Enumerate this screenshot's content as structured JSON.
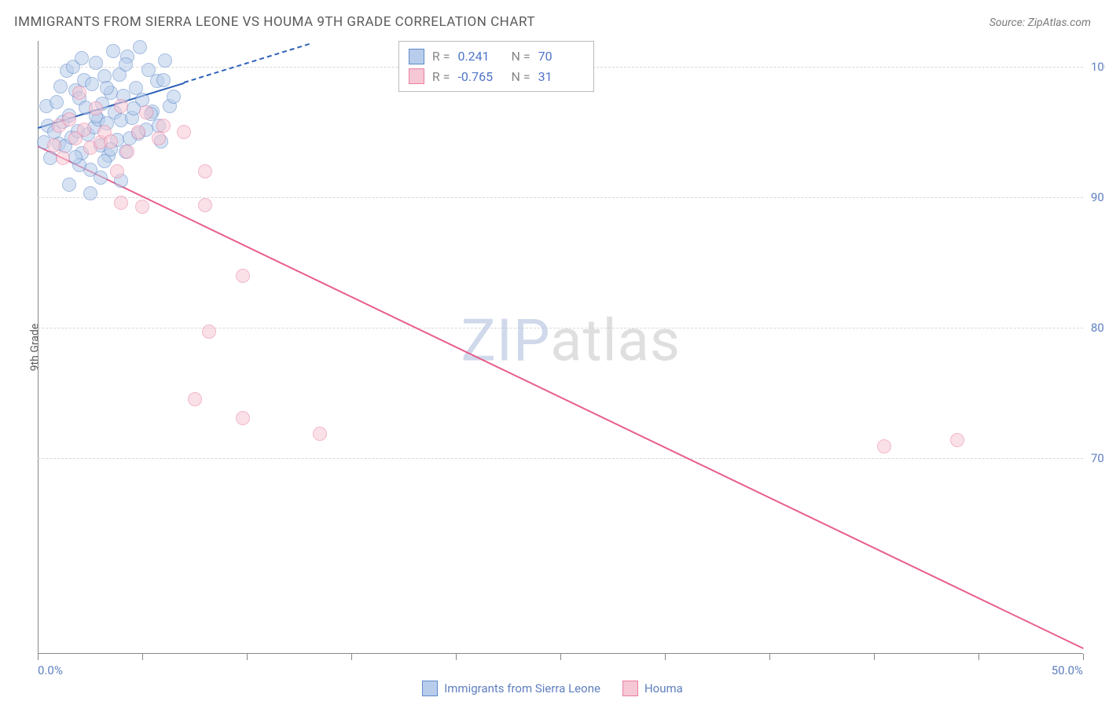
{
  "title": "IMMIGRANTS FROM SIERRA LEONE VS HOUMA 9TH GRADE CORRELATION CHART",
  "source": "Source: ZipAtlas.com",
  "y_axis_label": "9th Grade",
  "watermark": {
    "zip": "ZIP",
    "atlas": "atlas"
  },
  "footer_legend": [
    {
      "label": "Immigrants from Sierra Leone",
      "fill": "#b7cdeb",
      "stroke": "#5f88c9"
    },
    {
      "label": "Houma",
      "fill": "#f6c7d4",
      "stroke": "#e97fa2"
    }
  ],
  "stats_legend": {
    "left_pct": 34.5,
    "top_pct": 0,
    "rows": [
      {
        "swatch_fill": "#b7cdeb",
        "swatch_stroke": "#5f88c9",
        "r": "0.241",
        "n": "70"
      },
      {
        "swatch_fill": "#f6c7d4",
        "swatch_stroke": "#e97fa2",
        "r": "-0.765",
        "n": "31"
      }
    ]
  },
  "chart": {
    "type": "scatter",
    "x_domain": [
      0,
      50
    ],
    "y_domain": [
      55,
      102
    ],
    "x_end_labels": [
      "0.0%",
      "50.0%"
    ],
    "y_ticks": [
      {
        "v": 100,
        "label": "100.0%"
      },
      {
        "v": 90,
        "label": "90.0%"
      },
      {
        "v": 80,
        "label": "80.0%"
      },
      {
        "v": 70,
        "label": "70.0%"
      }
    ],
    "x_ticks": [
      0,
      5,
      10,
      15,
      20,
      25,
      30,
      35,
      40,
      45,
      50
    ],
    "grid_color": "#d8d8d8",
    "axis_color": "#888888",
    "point_radius": 9,
    "point_border": 1.5,
    "point_opacity": 0.55,
    "series": [
      {
        "id": "sierra_leone",
        "fill": "#b7cdeb",
        "stroke": "#5f88c9",
        "regression": {
          "x0": 0,
          "y0": 95.4,
          "x1": 13,
          "y1": 101.8,
          "dash_after_x": 7,
          "color": "#2f62b8"
        },
        "points": [
          [
            0.3,
            94.2
          ],
          [
            0.5,
            95.5
          ],
          [
            0.4,
            97.0
          ],
          [
            0.6,
            93.0
          ],
          [
            0.8,
            95.0
          ],
          [
            0.9,
            97.3
          ],
          [
            1.0,
            94.1
          ],
          [
            1.1,
            98.5
          ],
          [
            1.2,
            95.8
          ],
          [
            1.3,
            93.9
          ],
          [
            1.4,
            99.7
          ],
          [
            1.5,
            96.3
          ],
          [
            1.6,
            94.6
          ],
          [
            1.7,
            100.0
          ],
          [
            1.8,
            98.2
          ],
          [
            1.9,
            95.1
          ],
          [
            2.0,
            97.6
          ],
          [
            2.1,
            93.4
          ],
          [
            2.2,
            99.0
          ],
          [
            2.3,
            96.9
          ],
          [
            2.4,
            94.8
          ],
          [
            2.5,
            92.1
          ],
          [
            2.6,
            98.7
          ],
          [
            2.7,
            95.4
          ],
          [
            2.8,
            100.3
          ],
          [
            2.9,
            96.0
          ],
          [
            3.0,
            94.0
          ],
          [
            3.1,
            97.2
          ],
          [
            3.2,
            99.3
          ],
          [
            3.3,
            95.7
          ],
          [
            3.4,
            93.2
          ],
          [
            3.5,
            98.0
          ],
          [
            3.6,
            101.2
          ],
          [
            3.7,
            96.5
          ],
          [
            3.8,
            94.4
          ],
          [
            3.9,
            99.4
          ],
          [
            4.0,
            95.9
          ],
          [
            4.1,
            97.8
          ],
          [
            4.2,
            93.5
          ],
          [
            4.3,
            100.8
          ],
          [
            4.5,
            96.1
          ],
          [
            4.7,
            98.4
          ],
          [
            4.8,
            94.9
          ],
          [
            4.9,
            101.5
          ],
          [
            5.0,
            97.5
          ],
          [
            5.2,
            95.2
          ],
          [
            5.3,
            99.8
          ],
          [
            5.5,
            96.6
          ],
          [
            5.7,
            98.9
          ],
          [
            5.9,
            94.3
          ],
          [
            6.1,
            100.5
          ],
          [
            6.3,
            97.0
          ],
          [
            3.0,
            91.5
          ],
          [
            2.0,
            92.5
          ],
          [
            1.5,
            91.0
          ],
          [
            2.5,
            90.3
          ],
          [
            3.2,
            92.8
          ],
          [
            4.0,
            91.3
          ],
          [
            5.4,
            96.4
          ],
          [
            4.4,
            94.5
          ],
          [
            6.0,
            99.0
          ],
          [
            6.5,
            97.7
          ],
          [
            5.8,
            95.5
          ],
          [
            4.2,
            100.2
          ],
          [
            3.5,
            93.7
          ],
          [
            2.8,
            96.2
          ],
          [
            1.8,
            93.1
          ],
          [
            2.1,
            100.7
          ],
          [
            3.3,
            98.4
          ],
          [
            4.6,
            96.8
          ]
        ]
      },
      {
        "id": "houma",
        "fill": "#f6c7d4",
        "stroke": "#e97fa2",
        "regression": {
          "x0": 0,
          "y0": 94.0,
          "x1": 50,
          "y1": 55.5,
          "color": "#e85f8b"
        },
        "points": [
          [
            0.8,
            94.0
          ],
          [
            1.0,
            95.5
          ],
          [
            1.2,
            93.0
          ],
          [
            1.5,
            96.0
          ],
          [
            1.8,
            94.5
          ],
          [
            2.0,
            98.0
          ],
          [
            2.2,
            95.2
          ],
          [
            2.5,
            93.8
          ],
          [
            2.8,
            96.8
          ],
          [
            3.0,
            94.2
          ],
          [
            3.2,
            95.0
          ],
          [
            3.5,
            94.3
          ],
          [
            3.8,
            92.0
          ],
          [
            4.0,
            97.0
          ],
          [
            4.3,
            93.5
          ],
          [
            4.8,
            95.0
          ],
          [
            5.2,
            96.5
          ],
          [
            5.8,
            94.5
          ],
          [
            6.0,
            95.5
          ],
          [
            7.0,
            95.0
          ],
          [
            4.0,
            89.6
          ],
          [
            5.0,
            89.3
          ],
          [
            8.0,
            89.4
          ],
          [
            8.0,
            92.0
          ],
          [
            9.8,
            84.0
          ],
          [
            8.2,
            79.7
          ],
          [
            9.8,
            73.1
          ],
          [
            13.5,
            71.9
          ],
          [
            7.5,
            74.5
          ],
          [
            40.5,
            70.9
          ],
          [
            44.0,
            71.4
          ]
        ]
      }
    ]
  }
}
